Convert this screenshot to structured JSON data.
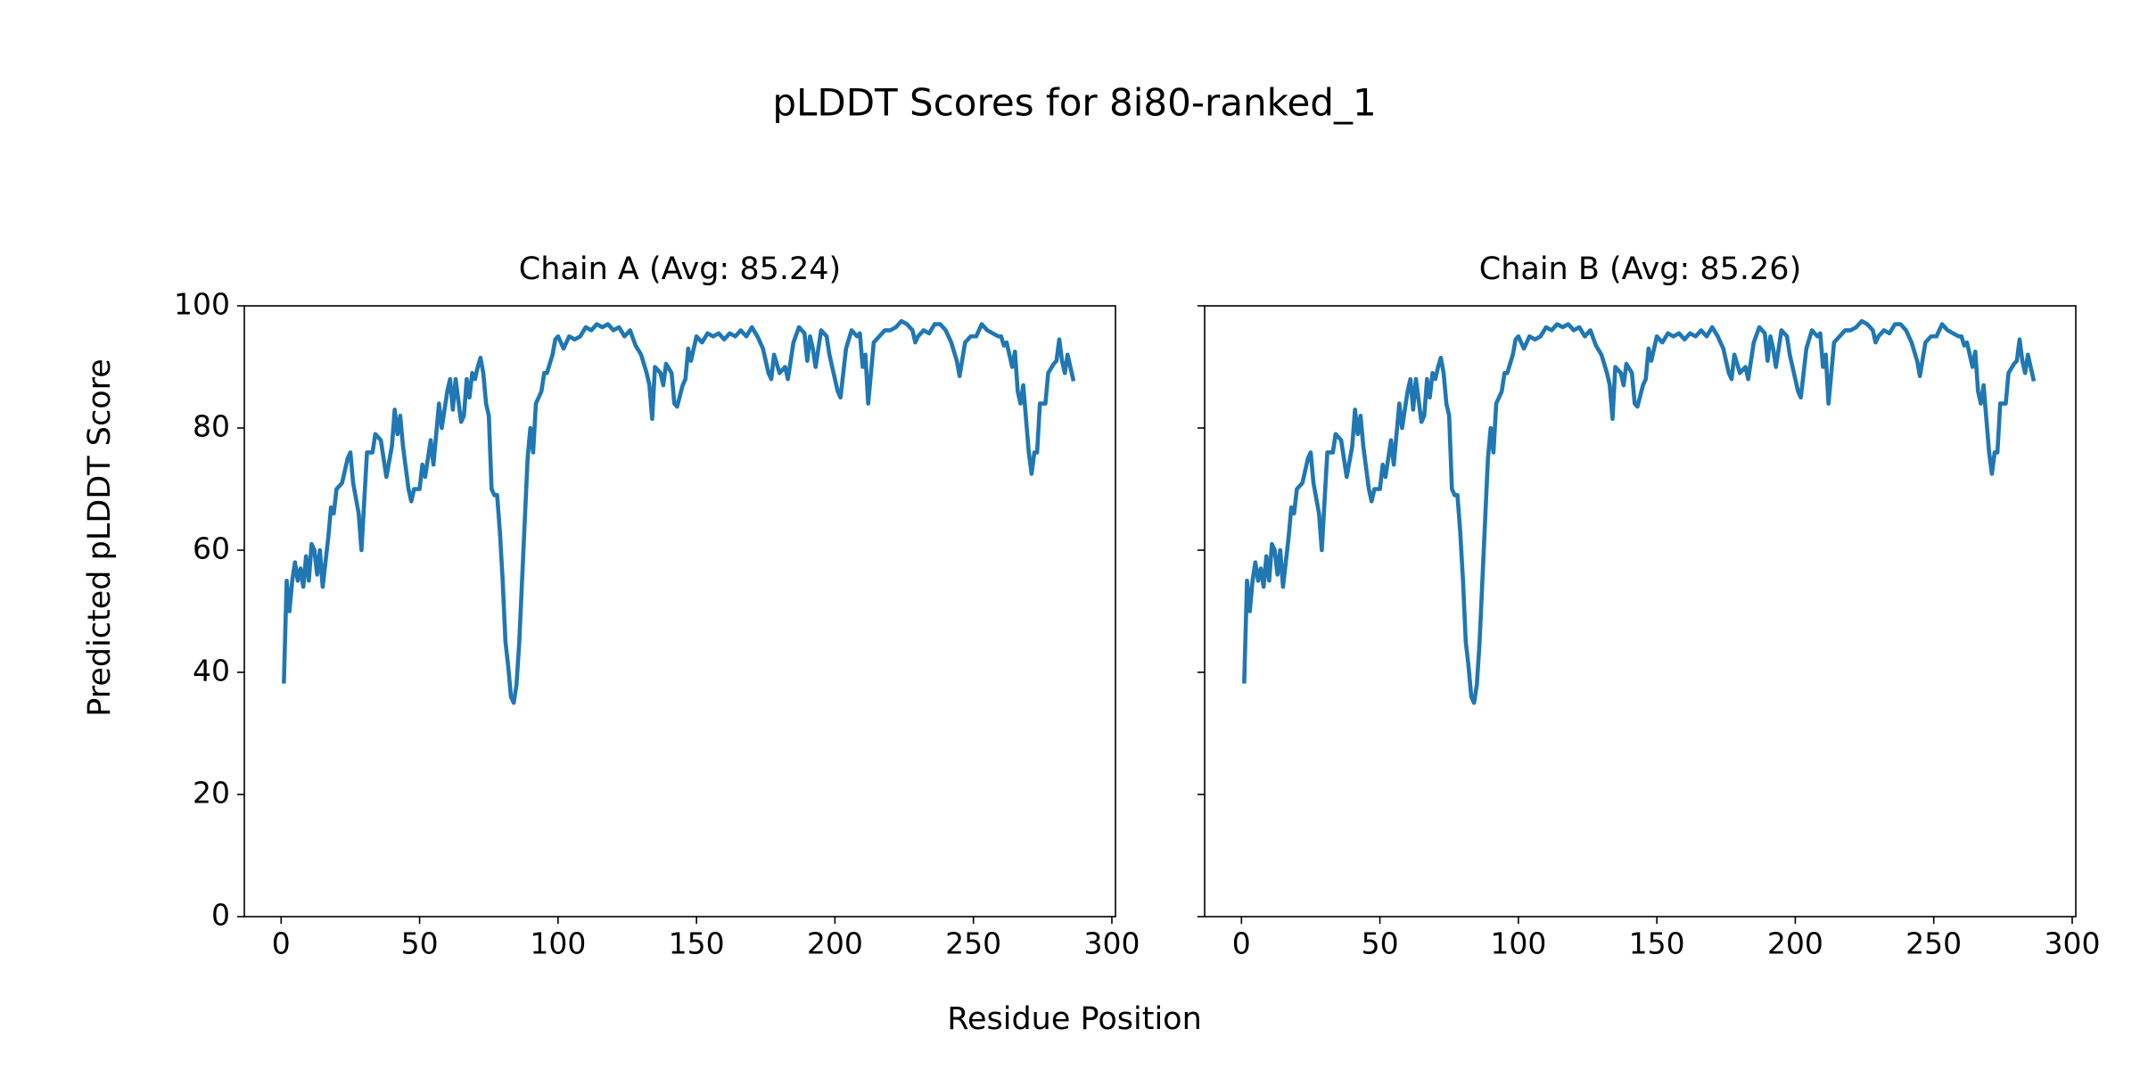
{
  "title": "pLDDT Scores for 8i80-ranked_1",
  "x_label": "Residue Position",
  "y_label": "Predicted pLDDT Score",
  "chart_data": [
    {
      "type": "line",
      "title": "Chain A (Avg: 85.24)",
      "x": [
        1,
        2,
        3,
        4,
        5,
        6,
        7,
        8,
        9,
        10,
        11,
        12,
        13,
        14,
        15,
        16,
        17,
        18,
        19,
        20,
        22,
        24,
        25,
        26,
        28,
        29,
        31,
        33,
        34,
        36,
        37,
        38,
        40,
        41,
        42,
        43,
        44,
        46,
        47,
        48,
        50,
        51,
        52,
        54,
        55,
        57,
        58,
        60,
        61,
        62,
        63,
        65,
        66,
        67,
        68,
        69,
        70,
        71,
        72,
        73,
        74,
        75,
        76,
        77,
        78,
        79,
        80,
        81,
        82,
        83,
        84,
        85,
        86,
        87,
        88,
        89,
        90,
        91,
        92,
        94,
        95,
        96,
        98,
        99,
        100,
        102,
        104,
        106,
        108,
        110,
        112,
        114,
        116,
        118,
        120,
        122,
        124,
        126,
        128,
        130,
        132,
        133,
        134,
        135,
        137,
        138,
        139,
        141,
        142,
        143,
        145,
        146,
        147,
        148,
        150,
        152,
        154,
        156,
        158,
        160,
        162,
        164,
        166,
        168,
        170,
        172,
        174,
        176,
        177,
        178,
        180,
        182,
        183,
        185,
        187,
        189,
        190,
        191,
        192,
        193,
        195,
        197,
        198,
        200,
        201,
        202,
        204,
        206,
        208,
        209,
        210,
        211,
        212,
        214,
        216,
        218,
        220,
        222,
        224,
        226,
        228,
        229,
        230,
        232,
        234,
        236,
        238,
        240,
        242,
        244,
        245,
        247,
        249,
        251,
        253,
        255,
        257,
        259,
        260,
        261,
        262,
        264,
        265,
        266,
        267,
        268,
        270,
        271,
        272,
        273,
        274,
        276,
        277,
        279,
        280,
        281,
        282,
        283,
        284,
        286
      ],
      "series": [
        {
          "color": "#1f77b4",
          "values": [
            38.5,
            55,
            50,
            55,
            58,
            55,
            57,
            54,
            59,
            55,
            61,
            60,
            56,
            60,
            54,
            58,
            62,
            67,
            66,
            70,
            71,
            75,
            76,
            71,
            66,
            60,
            76,
            76,
            79,
            78,
            75,
            72,
            77,
            83,
            79,
            82,
            77,
            70,
            68,
            70,
            70,
            74,
            72,
            78,
            74,
            84,
            80,
            86,
            88,
            83,
            88,
            81,
            82,
            88,
            85,
            89,
            88,
            90,
            91.5,
            89,
            84,
            82,
            70,
            69,
            69,
            63,
            55,
            45,
            41,
            36,
            35,
            38,
            45,
            55,
            65,
            75,
            80,
            76,
            84,
            86,
            89,
            89,
            92,
            94.5,
            95,
            93,
            95,
            94.5,
            95,
            96.5,
            96,
            97,
            96.5,
            97,
            96,
            96.5,
            95,
            96,
            93.5,
            92,
            89,
            87,
            81.5,
            90,
            89,
            87,
            90.5,
            89,
            84,
            83.5,
            87,
            88,
            93,
            91,
            95,
            94,
            95.5,
            95,
            95.5,
            94.5,
            95.5,
            95,
            96,
            95,
            96.5,
            95,
            93,
            89,
            88,
            92,
            89,
            90,
            88,
            94,
            96.5,
            95.5,
            91,
            95,
            93,
            90,
            96,
            95,
            92,
            88,
            86,
            85,
            93,
            96,
            95,
            95.5,
            90,
            92,
            84,
            94,
            95,
            96,
            96,
            96.5,
            97.5,
            97,
            96,
            94,
            95,
            96,
            95.5,
            97,
            97,
            96,
            94,
            91,
            88.5,
            94,
            95,
            95,
            97,
            96,
            95.5,
            95,
            95,
            93.5,
            94,
            90,
            92.5,
            86,
            84,
            87,
            76,
            72.5,
            76,
            76,
            84,
            84,
            89,
            90.5,
            91,
            94.5,
            91,
            89,
            92,
            88
          ]
        }
      ],
      "xlim": [
        -13.3,
        301.3
      ],
      "ylim": [
        0,
        100
      ],
      "xticks": [
        0,
        50,
        100,
        150,
        200,
        250,
        300
      ],
      "yticks": [
        0,
        20,
        40,
        60,
        80,
        100
      ],
      "yticklabels": true
    },
    {
      "type": "line",
      "title": "Chain B (Avg: 85.26)",
      "x": [
        1,
        2,
        3,
        4,
        5,
        6,
        7,
        8,
        9,
        10,
        11,
        12,
        13,
        14,
        15,
        16,
        17,
        18,
        19,
        20,
        22,
        24,
        25,
        26,
        28,
        29,
        31,
        33,
        34,
        36,
        37,
        38,
        40,
        41,
        42,
        43,
        44,
        46,
        47,
        48,
        50,
        51,
        52,
        54,
        55,
        57,
        58,
        60,
        61,
        62,
        63,
        65,
        66,
        67,
        68,
        69,
        70,
        71,
        72,
        73,
        74,
        75,
        76,
        77,
        78,
        79,
        80,
        81,
        82,
        83,
        84,
        85,
        86,
        87,
        88,
        89,
        90,
        91,
        92,
        94,
        95,
        96,
        98,
        99,
        100,
        102,
        104,
        106,
        108,
        110,
        112,
        114,
        116,
        118,
        120,
        122,
        124,
        126,
        128,
        130,
        132,
        133,
        134,
        135,
        137,
        138,
        139,
        141,
        142,
        143,
        145,
        146,
        147,
        148,
        150,
        152,
        154,
        156,
        158,
        160,
        162,
        164,
        166,
        168,
        170,
        172,
        174,
        176,
        177,
        178,
        180,
        182,
        183,
        185,
        187,
        189,
        190,
        191,
        192,
        193,
        195,
        197,
        198,
        200,
        201,
        202,
        204,
        206,
        208,
        209,
        210,
        211,
        212,
        214,
        216,
        218,
        220,
        222,
        224,
        226,
        228,
        229,
        230,
        232,
        234,
        236,
        238,
        240,
        242,
        244,
        245,
        247,
        249,
        251,
        253,
        255,
        257,
        259,
        260,
        261,
        262,
        264,
        265,
        266,
        267,
        268,
        270,
        271,
        272,
        273,
        274,
        276,
        277,
        279,
        280,
        281,
        282,
        283,
        284,
        286
      ],
      "series": [
        {
          "color": "#1f77b4",
          "values": [
            38.5,
            55,
            50,
            55,
            58,
            55,
            57,
            54,
            59,
            55,
            61,
            60,
            56,
            60,
            54,
            58,
            62,
            67,
            66,
            70,
            71,
            75,
            76,
            71,
            66,
            60,
            76,
            76,
            79,
            78,
            75,
            72,
            77,
            83,
            79,
            82,
            77,
            70,
            68,
            70,
            70,
            74,
            72,
            78,
            74,
            84,
            80,
            86,
            88,
            83,
            88,
            81,
            82,
            88,
            85,
            89,
            88,
            90,
            91.5,
            89,
            84,
            82,
            70,
            69,
            69,
            63,
            55,
            45,
            41,
            36,
            35,
            38,
            45,
            55,
            65,
            75,
            80,
            76,
            84,
            86,
            89,
            89,
            92,
            94.5,
            95,
            93,
            95,
            94.5,
            95,
            96.5,
            96,
            97,
            96.5,
            97,
            96,
            96.5,
            95,
            96,
            93.5,
            92,
            89,
            87,
            81.5,
            90,
            89,
            87,
            90.5,
            89,
            84,
            83.5,
            87,
            88,
            93,
            91,
            95,
            94,
            95.5,
            95,
            95.5,
            94.5,
            95.5,
            95,
            96,
            95,
            96.5,
            95,
            93,
            89,
            88,
            92,
            89,
            90,
            88,
            94,
            96.5,
            95.5,
            91,
            95,
            93,
            90,
            96,
            95,
            92,
            88,
            86,
            85,
            93,
            96,
            95,
            95.5,
            90,
            92,
            84,
            94,
            95,
            96,
            96,
            96.5,
            97.5,
            97,
            96,
            94,
            95,
            96,
            95.5,
            97,
            97,
            96,
            94,
            91,
            88.5,
            94,
            95,
            95,
            97,
            96,
            95.5,
            95,
            95,
            93.5,
            94,
            90,
            92.5,
            86,
            84,
            87,
            76,
            72.5,
            76,
            76,
            84,
            84,
            89,
            90.5,
            91,
            94.5,
            91,
            89,
            92,
            88
          ]
        }
      ],
      "xlim": [
        -13.3,
        301.3
      ],
      "ylim": [
        0,
        100
      ],
      "xticks": [
        0,
        50,
        100,
        150,
        200,
        250,
        300
      ],
      "yticks": [
        0,
        20,
        40,
        60,
        80,
        100
      ],
      "yticklabels": false
    }
  ]
}
